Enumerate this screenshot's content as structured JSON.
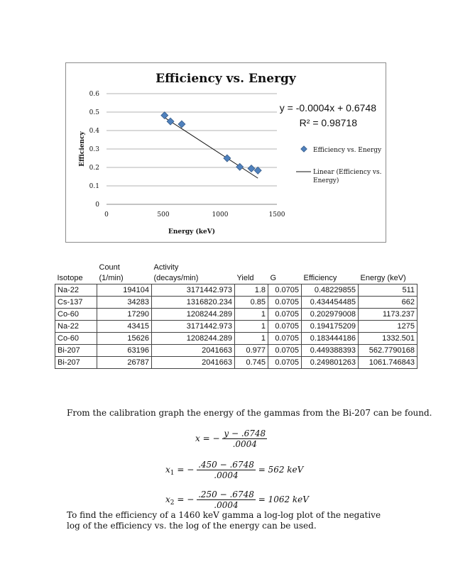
{
  "chart_data": {
    "type": "scatter",
    "title": "Efficiency vs. Energy",
    "xlabel": "Energy (keV)",
    "ylabel": "Efficiency",
    "xlim": [
      0,
      1500
    ],
    "ylim": [
      0,
      0.6
    ],
    "x_ticks": [
      "0",
      "500",
      "1000",
      "1500"
    ],
    "y_ticks": [
      "0",
      "0.1",
      "0.2",
      "0.3",
      "0.4",
      "0.5",
      "0.6"
    ],
    "series": [
      {
        "name": "Efficiency vs. Energy",
        "points": [
          [
            511,
            0.48229855
          ],
          [
            562.7790168,
            0.449388393
          ],
          [
            662,
            0.434454485
          ],
          [
            1061.746843,
            0.249801263
          ],
          [
            1173.237,
            0.202979008
          ],
          [
            1275,
            0.194175209
          ],
          [
            1332.501,
            0.183444186
          ]
        ],
        "color": "#4f81bd"
      }
    ],
    "trendline": {
      "name": "Linear (Efficiency vs. Energy)",
      "slope": -0.0004,
      "intercept": 0.6748,
      "x_range": [
        511,
        1332.501
      ]
    },
    "equation": "y = -0.0004x + 0.6748",
    "r_squared": "R² = 0.98718",
    "legend_position": "right",
    "grid": "horizontal"
  },
  "table": {
    "header_top": [
      "",
      "Count",
      "Activity",
      "",
      "",
      "",
      ""
    ],
    "header_bottom": [
      "Isotope",
      "(1/min)",
      "(decays/min)",
      "Yield",
      "G",
      "Efficiency",
      "Energy (keV)"
    ],
    "rows": [
      [
        "Na-22",
        "194104",
        "3171442.973",
        "1.8",
        "0.0705",
        "0.48229855",
        "511"
      ],
      [
        "Cs-137",
        "34283",
        "1316820.234",
        "0.85",
        "0.0705",
        "0.434454485",
        "662"
      ],
      [
        "Co-60",
        "17290",
        "1208244.289",
        "1",
        "0.0705",
        "0.202979008",
        "1173.237"
      ],
      [
        "Na-22",
        "43415",
        "3171442.973",
        "1",
        "0.0705",
        "0.194175209",
        "1275"
      ],
      [
        "Co-60",
        "15626",
        "1208244.289",
        "1",
        "0.0705",
        "0.183444186",
        "1332.501"
      ],
      [
        "Bi-207",
        "63196",
        "2041663",
        "0.977",
        "0.0705",
        "0.449388393",
        "562.7790168"
      ],
      [
        "Bi-207",
        "26787",
        "2041663",
        "0.745",
        "0.0705",
        "0.249801263",
        "1061.746843"
      ]
    ]
  },
  "text": {
    "para1": "From the calibration graph the energy of the gammas from the Bi-207 can be found.",
    "eq1": {
      "lhs": "x = −",
      "num": "y − .6748",
      "den": ".0004"
    },
    "eq2": {
      "lhs": "x",
      "sub": "1",
      "eq": " = −",
      "num": ".450 − .6748",
      "den": ".0004",
      "rhs": " = 562 keV"
    },
    "eq3": {
      "lhs": "x",
      "sub": "2",
      "eq": " = −",
      "num": ".250 − .6748",
      "den": ".0004",
      "rhs": " = 1062 keV"
    },
    "para2": "To find the efficiency of a 1460 keV gamma a log-log plot of the negative log of the efficiency vs. the log of the energy can be used."
  }
}
